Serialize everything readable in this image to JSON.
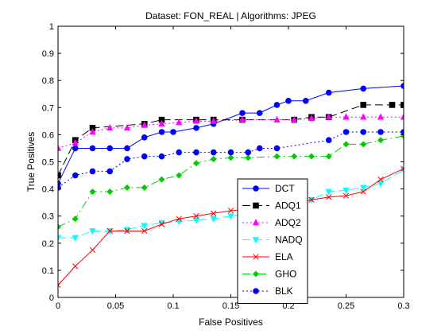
{
  "chart_data": {
    "type": "line",
    "title": "Dataset: FON_REAL | Algorithms: JPEG",
    "xlabel": "False Positives",
    "ylabel": "True Positives",
    "xlim": [
      0,
      0.3
    ],
    "ylim": [
      0,
      1
    ],
    "x_ticks": [
      0,
      0.05,
      0.1,
      0.15,
      0.2,
      0.25,
      0.3
    ],
    "x_tick_labels": [
      "0",
      "0.05",
      "0.1",
      "0.15",
      "0.2",
      "0.25",
      "0.3"
    ],
    "y_ticks": [
      0,
      0.1,
      0.2,
      0.3,
      0.4,
      0.5,
      0.6,
      0.7,
      0.8,
      0.9,
      1
    ],
    "y_tick_labels": [
      "0",
      "0.1",
      "0.2",
      "0.3",
      "0.4",
      "0.5",
      "0.6",
      "0.7",
      "0.8",
      "0.9",
      "1"
    ],
    "grid": false,
    "legend_position": "lower-center-right",
    "series": [
      {
        "name": "DCT",
        "color": "#0000ff",
        "dash": "solid",
        "marker": "circle",
        "marker_fill": "#0000ff",
        "x": [
          0,
          0.015,
          0.03,
          0.045,
          0.06,
          0.075,
          0.09,
          0.1,
          0.12,
          0.135,
          0.16,
          0.175,
          0.19,
          0.2,
          0.215,
          0.235,
          0.265,
          0.3
        ],
        "y": [
          0.42,
          0.55,
          0.55,
          0.55,
          0.55,
          0.59,
          0.61,
          0.61,
          0.625,
          0.64,
          0.68,
          0.68,
          0.71,
          0.725,
          0.725,
          0.755,
          0.77,
          0.78
        ]
      },
      {
        "name": "ADQ1",
        "color": "#000000",
        "dash": "10,5",
        "marker": "square",
        "marker_fill": "#000000",
        "x": [
          0,
          0.015,
          0.03,
          0.075,
          0.09,
          0.12,
          0.135,
          0.16,
          0.205,
          0.22,
          0.235,
          0.265,
          0.29,
          0.3
        ],
        "y": [
          0.45,
          0.58,
          0.625,
          0.64,
          0.655,
          0.655,
          0.655,
          0.655,
          0.655,
          0.665,
          0.665,
          0.71,
          0.71,
          0.71
        ]
      },
      {
        "name": "ADQ2",
        "color": "#ff00ff",
        "dash": "2,3",
        "marker": "triangle-up",
        "marker_fill": "#ff00ff",
        "x": [
          0,
          0.015,
          0.03,
          0.045,
          0.06,
          0.075,
          0.09,
          0.105,
          0.12,
          0.135,
          0.16,
          0.19,
          0.205,
          0.22,
          0.235,
          0.25,
          0.265,
          0.28,
          0.3
        ],
        "y": [
          0.55,
          0.57,
          0.61,
          0.625,
          0.625,
          0.635,
          0.64,
          0.645,
          0.65,
          0.65,
          0.655,
          0.655,
          0.655,
          0.66,
          0.665,
          0.665,
          0.665,
          0.665,
          0.665
        ]
      },
      {
        "name": "NADQ",
        "color": "#00ffff",
        "dash": "10,5",
        "marker": "triangle-down",
        "marker_fill": "#00ffff",
        "x": [
          0,
          0.015,
          0.03,
          0.045,
          0.06,
          0.075,
          0.09,
          0.105,
          0.12,
          0.135,
          0.15,
          0.165,
          0.19,
          0.205,
          0.22,
          0.235,
          0.25,
          0.265,
          0.28,
          0.3
        ],
        "y": [
          0.22,
          0.22,
          0.245,
          0.245,
          0.25,
          0.265,
          0.275,
          0.28,
          0.285,
          0.29,
          0.3,
          0.31,
          0.33,
          0.345,
          0.36,
          0.39,
          0.395,
          0.405,
          0.42,
          0.47
        ]
      },
      {
        "name": "ELA",
        "color": "#ff0000",
        "dash": "solid",
        "marker": "x",
        "marker_fill": "none",
        "x": [
          0,
          0.015,
          0.03,
          0.045,
          0.06,
          0.075,
          0.09,
          0.105,
          0.12,
          0.135,
          0.15,
          0.165,
          0.19,
          0.205,
          0.22,
          0.235,
          0.25,
          0.265,
          0.28,
          0.3
        ],
        "y": [
          0.045,
          0.115,
          0.175,
          0.245,
          0.245,
          0.245,
          0.27,
          0.29,
          0.3,
          0.31,
          0.32,
          0.325,
          0.34,
          0.35,
          0.36,
          0.37,
          0.375,
          0.39,
          0.435,
          0.475
        ]
      },
      {
        "name": "GHO",
        "color": "#00cc00",
        "dash": "10,4,2,4",
        "marker": "diamond",
        "marker_fill": "#00cc00",
        "x": [
          0,
          0.015,
          0.03,
          0.045,
          0.06,
          0.075,
          0.09,
          0.105,
          0.12,
          0.135,
          0.15,
          0.165,
          0.19,
          0.205,
          0.22,
          0.235,
          0.25,
          0.265,
          0.28,
          0.3
        ],
        "y": [
          0.26,
          0.29,
          0.39,
          0.39,
          0.405,
          0.405,
          0.435,
          0.45,
          0.495,
          0.51,
          0.515,
          0.515,
          0.52,
          0.52,
          0.52,
          0.52,
          0.565,
          0.565,
          0.58,
          0.595
        ]
      },
      {
        "name": "BLK",
        "color": "#0000ff",
        "dash": "2,3",
        "marker": "circle",
        "marker_fill": "#0000ff",
        "x": [
          0,
          0.015,
          0.03,
          0.045,
          0.06,
          0.075,
          0.09,
          0.105,
          0.12,
          0.135,
          0.15,
          0.165,
          0.175,
          0.19,
          0.235,
          0.25,
          0.265,
          0.28,
          0.3
        ],
        "y": [
          0.405,
          0.45,
          0.465,
          0.465,
          0.51,
          0.52,
          0.52,
          0.535,
          0.535,
          0.535,
          0.535,
          0.535,
          0.55,
          0.55,
          0.58,
          0.61,
          0.61,
          0.61,
          0.61
        ]
      }
    ]
  }
}
